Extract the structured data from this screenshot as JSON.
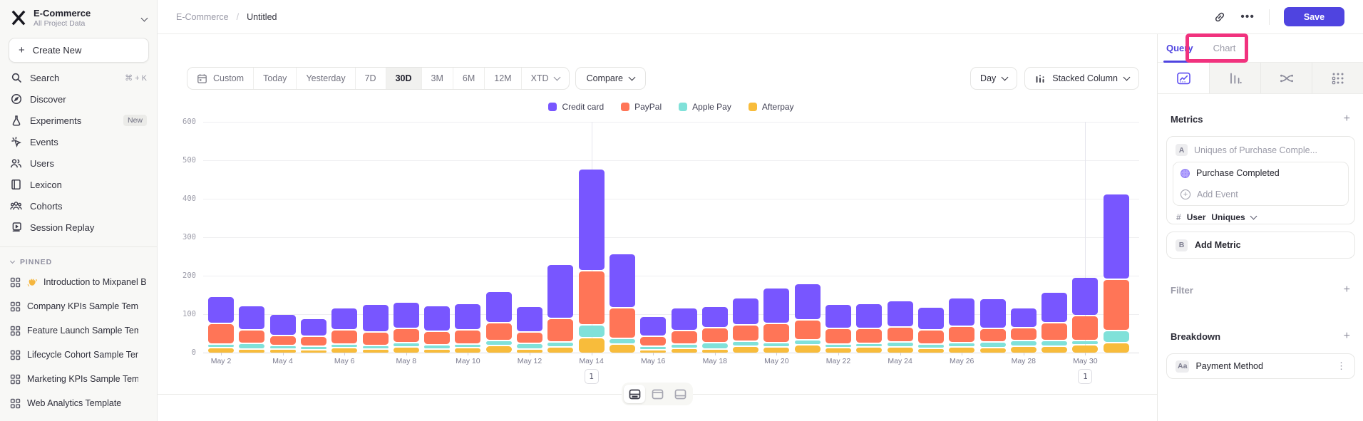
{
  "sidebar": {
    "project_name": "E-Commerce",
    "project_scope": "All Project Data",
    "create_label": "Create New",
    "nav": [
      {
        "id": "search",
        "label": "Search",
        "shortcut": "⌘ + K"
      },
      {
        "id": "discover",
        "label": "Discover"
      },
      {
        "id": "experiments",
        "label": "Experiments",
        "badge": "New"
      },
      {
        "id": "events",
        "label": "Events"
      },
      {
        "id": "users",
        "label": "Users"
      },
      {
        "id": "lexicon",
        "label": "Lexicon"
      },
      {
        "id": "cohorts",
        "label": "Cohorts"
      },
      {
        "id": "session-replay",
        "label": "Session Replay"
      }
    ],
    "pinned_header": "PINNED",
    "pinned": [
      {
        "label": "Introduction to Mixpanel Board",
        "emoji": "wave"
      },
      {
        "label": "Company KPIs Sample Template"
      },
      {
        "label": "Feature Launch Sample Template"
      },
      {
        "label": "Lifecycle Cohort Sample Template"
      },
      {
        "label": "Marketing KPIs Sample Template"
      },
      {
        "label": "Web Analytics Template"
      }
    ]
  },
  "header": {
    "breadcrumb_project": "E-Commerce",
    "breadcrumb_sep": "/",
    "breadcrumb_page": "Untitled",
    "save_label": "Save"
  },
  "toolbar": {
    "ranges": [
      "Custom",
      "Today",
      "Yesterday",
      "7D",
      "30D",
      "3M",
      "6M",
      "12M",
      "XTD"
    ],
    "active_range": "30D",
    "compare_label": "Compare",
    "granularity_label": "Day",
    "chart_type_label": "Stacked Column"
  },
  "qpanel": {
    "tab_query": "Query",
    "tab_chart": "Chart",
    "view_tabs": [
      "insights",
      "funnels",
      "flows",
      "retention"
    ],
    "active_view_tab": "insights",
    "metrics_title": "Metrics",
    "metric_a_badge": "A",
    "metric_a_placeholder": "Uniques of Purchase Comple...",
    "event_name": "Purchase Completed",
    "add_event_label": "Add Event",
    "measure_hash": "#",
    "measure_entity": "User",
    "measure_type": "Uniques",
    "metric_b_badge": "B",
    "add_metric_label": "Add Metric",
    "filter_title": "Filter",
    "breakdown_title": "Breakdown",
    "breakdown_badge": "Aa",
    "breakdown_label": "Payment Method"
  },
  "chart_data": {
    "type": "bar",
    "stacked": true,
    "title": "",
    "xlabel": "",
    "ylabel": "",
    "granularity": "Day",
    "x": [
      "May 2",
      "May 3",
      "May 4",
      "May 5",
      "May 6",
      "May 7",
      "May 8",
      "May 9",
      "May 10",
      "May 11",
      "May 12",
      "May 13",
      "May 14",
      "May 15",
      "May 16",
      "May 17",
      "May 18",
      "May 19",
      "May 20",
      "May 21",
      "May 22",
      "May 23",
      "May 24",
      "May 25",
      "May 26",
      "May 27",
      "May 28",
      "May 29",
      "May 30",
      "May 31"
    ],
    "x_tick_labels": [
      "May 2",
      "May 4",
      "May 6",
      "May 8",
      "May 10",
      "May 12",
      "May 14",
      "May 16",
      "May 18",
      "May 20",
      "May 22",
      "May 24",
      "May 26",
      "May 28",
      "May 30"
    ],
    "series": [
      {
        "name": "Credit card",
        "color": "#7856FF",
        "values": [
          70,
          63,
          54,
          47,
          57,
          71,
          68,
          67,
          68,
          83,
          67,
          140,
          265,
          140,
          52,
          59,
          56,
          69,
          93,
          94,
          63,
          65,
          69,
          59,
          74,
          78,
          52,
          80,
          100,
          222
        ]
      },
      {
        "name": "PayPal",
        "color": "#FF7557",
        "values": [
          54,
          35,
          26,
          26,
          38,
          35,
          37,
          34,
          38,
          46,
          29,
          62,
          140,
          80,
          26,
          36,
          39,
          43,
          49,
          51,
          39,
          39,
          39,
          37,
          42,
          36,
          34,
          46,
          65,
          133
        ]
      },
      {
        "name": "Apple Pay",
        "color": "#80E1D9",
        "values": [
          9,
          14,
          9,
          9,
          10,
          9,
          11,
          11,
          9,
          13,
          14,
          12,
          35,
          15,
          8,
          11,
          17,
          14,
          12,
          14,
          11,
          10,
          12,
          11,
          11,
          14,
          14,
          15,
          12,
          33
        ]
      },
      {
        "name": "Afterpay",
        "color": "#F8BC3B",
        "values": [
          15,
          12,
          12,
          9,
          14,
          12,
          17,
          12,
          15,
          20,
          12,
          17,
          40,
          24,
          10,
          13,
          11,
          18,
          16,
          22,
          14,
          16,
          17,
          13,
          17,
          15,
          19,
          19,
          22,
          27
        ]
      }
    ],
    "stack_order_bottom_to_top": [
      "Afterpay",
      "Apple Pay",
      "PayPal",
      "Credit card"
    ],
    "ylim": [
      0,
      600
    ],
    "yticks": [
      0,
      100,
      200,
      300,
      400,
      500,
      600
    ],
    "grid": true,
    "legend_position": "top",
    "annotations": [
      {
        "x": "May 14",
        "label": "1"
      },
      {
        "x": "May 30",
        "label": "1"
      }
    ]
  },
  "colors": {
    "accent": "#4f44e0",
    "annotation_highlight": "#f1327e",
    "sidebar_bg": "#f8f8f6"
  }
}
